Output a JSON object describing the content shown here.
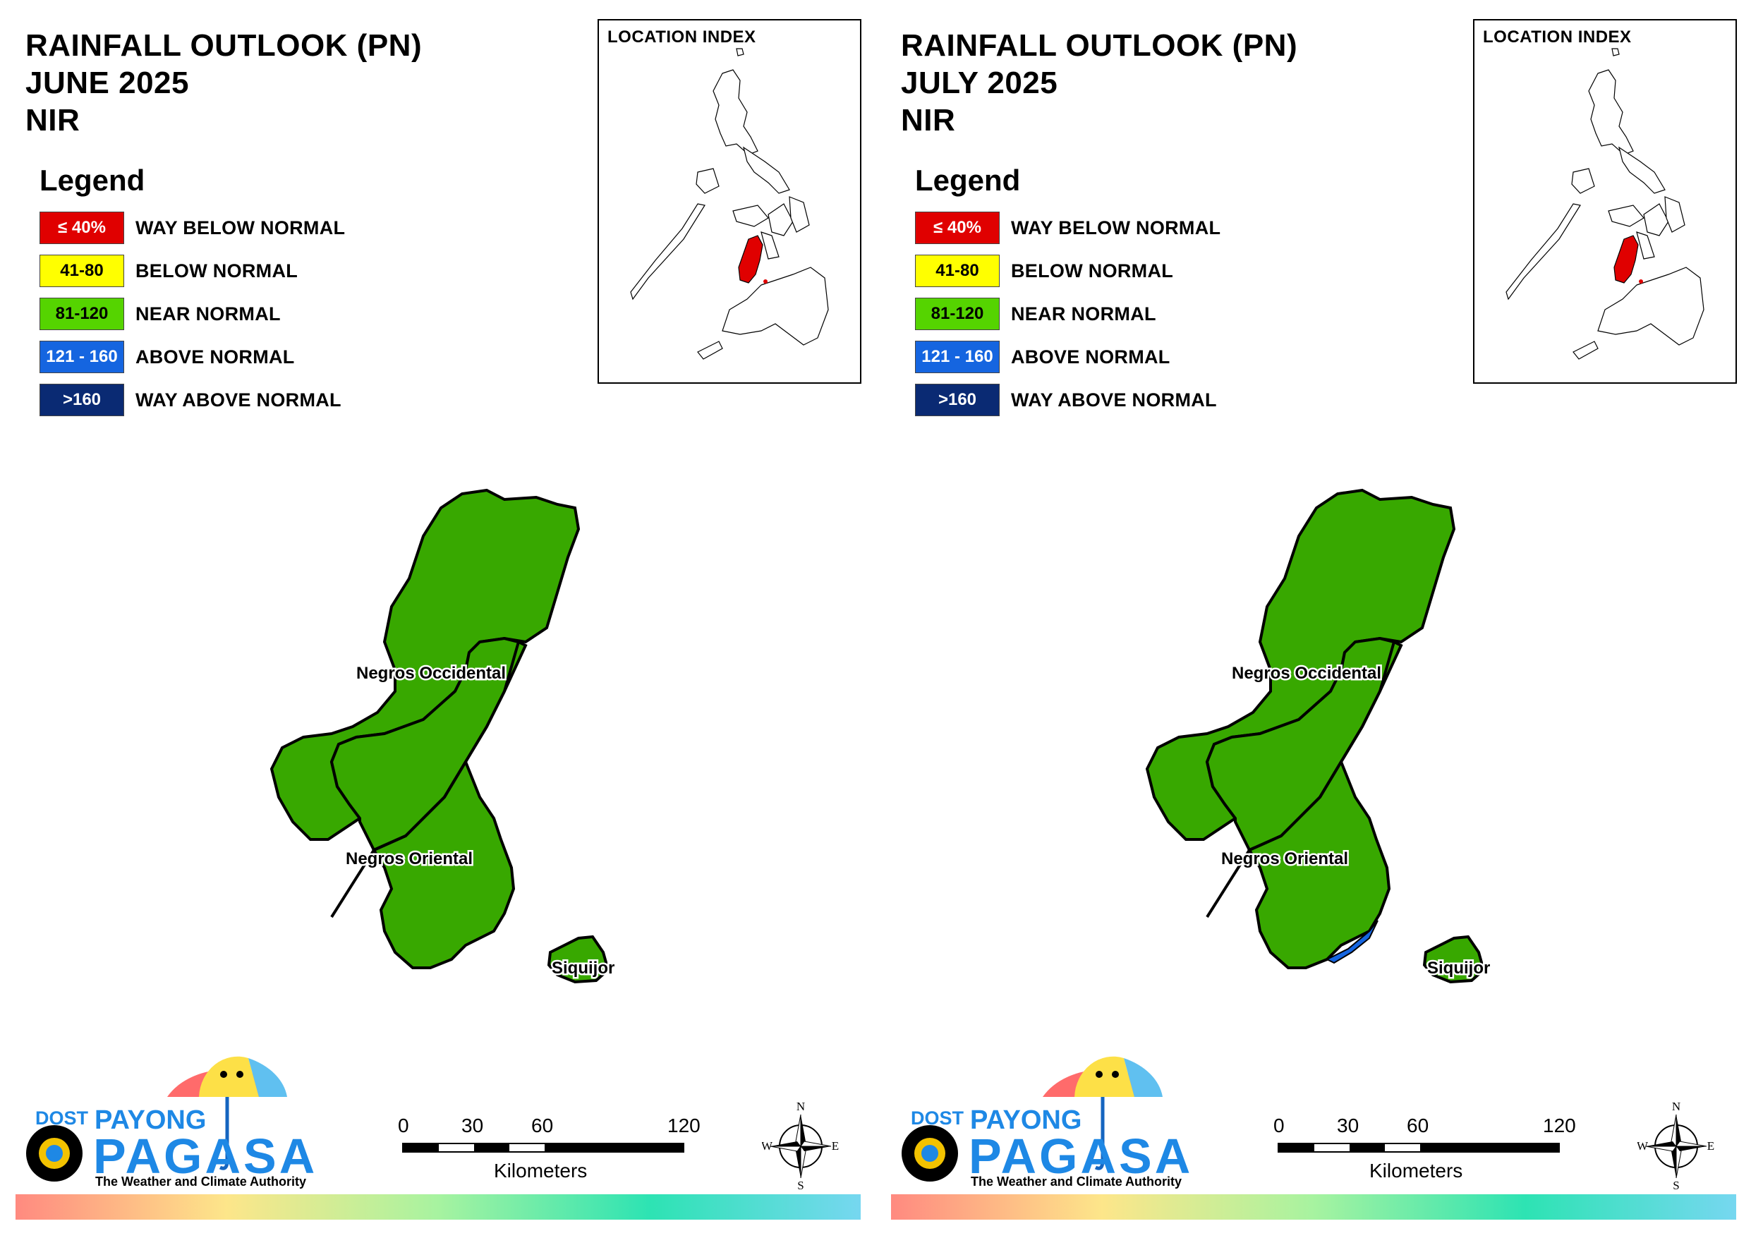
{
  "panels": [
    {
      "title_line1": "RAINFALL OUTLOOK (PN)",
      "title_line2": "JUNE 2025",
      "title_line3": "NIR",
      "inset_label": "LOCATION INDEX",
      "legend_title": "Legend",
      "legend": [
        {
          "range": "≤ 40%",
          "label": "WAY BELOW NORMAL",
          "color": "#e00000",
          "text_color": "#ffffff"
        },
        {
          "range": "41-80",
          "label": "BELOW NORMAL",
          "color": "#ffff00",
          "text_color": "#000000"
        },
        {
          "range": "81-120",
          "label": "NEAR NORMAL",
          "color": "#55d400",
          "text_color": "#000000"
        },
        {
          "range": "121 - 160",
          "label": "ABOVE NORMAL",
          "color": "#1565e0",
          "text_color": "#ffffff"
        },
        {
          "range": ">160",
          "label": "WAY ABOVE NORMAL",
          "color": "#0a2a73",
          "text_color": "#ffffff"
        }
      ],
      "map_fill": "#38a800",
      "above_normal_patch": false,
      "labels": {
        "occ": "Negros Occidental",
        "ori": "Negros Oriental",
        "siq": "Siquijor"
      },
      "logo": {
        "dost": "DOST",
        "payong": "PAYONG",
        "pagasa": "PAGASA",
        "tagline": "The Weather and Climate Authority"
      },
      "scale": {
        "ticks": [
          "0",
          "30",
          "60",
          "120"
        ],
        "unit": "Kilometers"
      },
      "compass": {
        "n": "N",
        "s": "S",
        "e": "E",
        "w": "W"
      }
    },
    {
      "title_line1": "RAINFALL OUTLOOK (PN)",
      "title_line2": "JULY 2025",
      "title_line3": "NIR",
      "inset_label": "LOCATION INDEX",
      "legend_title": "Legend",
      "legend": [
        {
          "range": "≤ 40%",
          "label": "WAY BELOW NORMAL",
          "color": "#e00000",
          "text_color": "#ffffff"
        },
        {
          "range": "41-80",
          "label": "BELOW NORMAL",
          "color": "#ffff00",
          "text_color": "#000000"
        },
        {
          "range": "81-120",
          "label": "NEAR NORMAL",
          "color": "#55d400",
          "text_color": "#000000"
        },
        {
          "range": "121 - 160",
          "label": "ABOVE NORMAL",
          "color": "#1565e0",
          "text_color": "#ffffff"
        },
        {
          "range": ">160",
          "label": "WAY ABOVE NORMAL",
          "color": "#0a2a73",
          "text_color": "#ffffff"
        }
      ],
      "map_fill": "#38a800",
      "above_normal_patch": true,
      "labels": {
        "occ": "Negros Occidental",
        "ori": "Negros Oriental",
        "siq": "Siquijor"
      },
      "logo": {
        "dost": "DOST",
        "payong": "PAYONG",
        "pagasa": "PAGASA",
        "tagline": "The Weather and Climate Authority"
      },
      "scale": {
        "ticks": [
          "0",
          "30",
          "60",
          "120"
        ],
        "unit": "Kilometers"
      },
      "compass": {
        "n": "N",
        "s": "S",
        "e": "E",
        "w": "W"
      }
    }
  ]
}
